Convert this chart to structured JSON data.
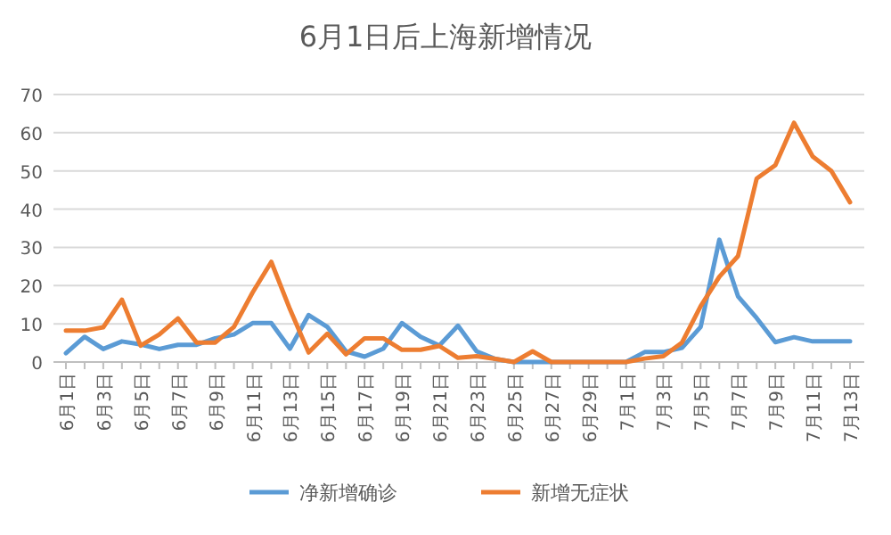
{
  "chart_data": {
    "type": "line",
    "title": "6月1日后上海新增情况",
    "categories": [
      "6月1日",
      null,
      "6月3日",
      null,
      "6月5日",
      null,
      "6月7日",
      null,
      "6月9日",
      null,
      "6月11日",
      null,
      "6月13日",
      null,
      "6月15日",
      null,
      "6月17日",
      null,
      "6月19日",
      null,
      "6月21日",
      null,
      "6月23日",
      null,
      "6月25日",
      null,
      "6月27日",
      null,
      "6月29日",
      null,
      "7月1日",
      null,
      "7月3日",
      null,
      "7月5日",
      null,
      "7月7日",
      null,
      "7月9日",
      null,
      "7月11日",
      null,
      "7月13日"
    ],
    "series": [
      {
        "name": "净新增确诊",
        "color": "#5b9bd5",
        "values": [
          2.3,
          6.6,
          3.4,
          5.4,
          4.6,
          3.4,
          4.5,
          4.5,
          6.2,
          7.2,
          10.2,
          10.2,
          3.5,
          12.3,
          9.2,
          2.8,
          1.4,
          3.5,
          10.2,
          6.6,
          4.3,
          9.5,
          2.8,
          0.8,
          0,
          0,
          0,
          0,
          0,
          0,
          0,
          2.6,
          2.6,
          3.7,
          9.2,
          32,
          17.2,
          11.5,
          5.2,
          6.5,
          5.4,
          5.4,
          5.4
        ]
      },
      {
        "name": "新增无症状",
        "color": "#ed7d31",
        "values": [
          8.2,
          8.2,
          9.1,
          16.3,
          4.3,
          7.2,
          11.4,
          5.1,
          5.1,
          9.2,
          18.2,
          26.2,
          13.8,
          2.5,
          7.4,
          2,
          6.2,
          6.2,
          3.2,
          3.2,
          4.2,
          1.1,
          1.5,
          0.8,
          0,
          2.8,
          0,
          0,
          0,
          0,
          0,
          0.9,
          1.5,
          5.1,
          14.6,
          22.3,
          27.7,
          48,
          51.5,
          62.6,
          53.8,
          50,
          41.8
        ]
      }
    ],
    "ylim": [
      0,
      70
    ],
    "yticks": [
      0,
      10,
      20,
      30,
      40,
      50,
      60,
      70
    ],
    "grid": "y",
    "legend": "bottom",
    "marker": "none",
    "line_style": "solid"
  }
}
